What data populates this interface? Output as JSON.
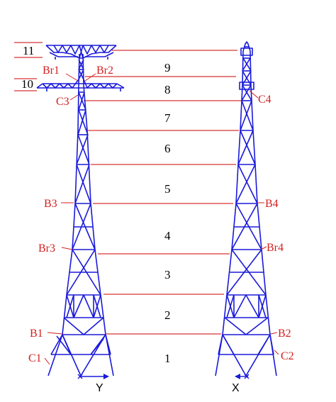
{
  "colors": {
    "tower": "#1a1adb",
    "label": "#d42020",
    "divider": "#cc0000",
    "text": "#000000"
  },
  "segments": [
    "1",
    "2",
    "3",
    "4",
    "5",
    "6",
    "7",
    "8",
    "9",
    "10",
    "11"
  ],
  "markers": {
    "br1": "Br1",
    "br2": "Br2",
    "br3": "Br3",
    "br4": "Br4",
    "c1": "C1",
    "c2": "C2",
    "c3": "C3",
    "c4": "C4",
    "b1": "B1",
    "b2": "B2",
    "b3": "B3",
    "b4": "B4"
  },
  "axes": {
    "left": "Y",
    "right": "X"
  }
}
